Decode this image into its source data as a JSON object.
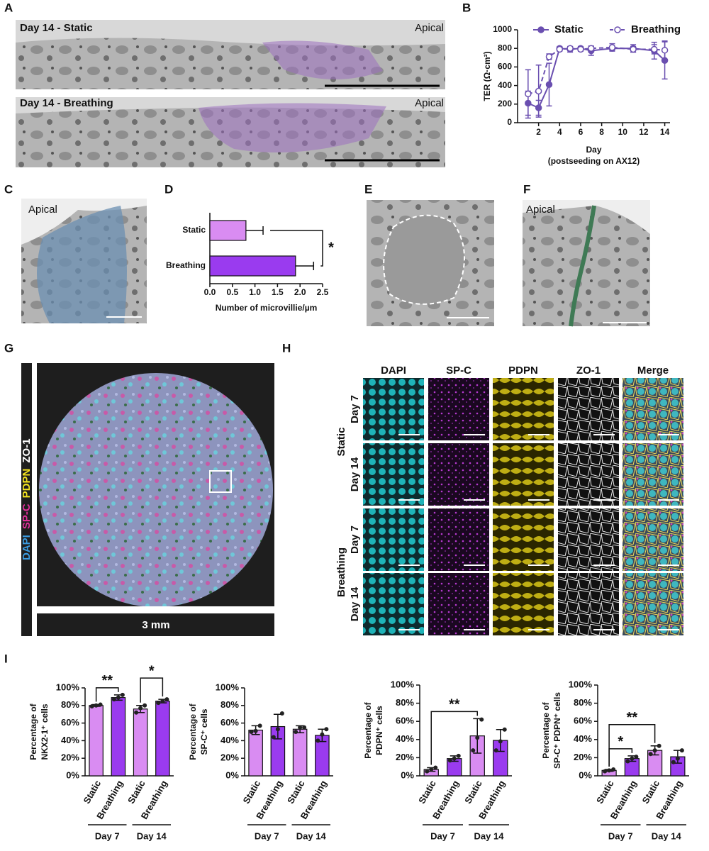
{
  "panel_labels": {
    "a": "A",
    "b": "B",
    "c": "C",
    "d": "D",
    "e": "E",
    "f": "F",
    "g": "G",
    "h": "H",
    "i": "I"
  },
  "panel_a": {
    "titles": [
      "Day 14 - Static",
      "Day 14 - Breathing"
    ],
    "side_labels": [
      "Apical",
      "Apical"
    ]
  },
  "panel_c": {
    "label": "Apical"
  },
  "panel_f": {
    "label": "Apical"
  },
  "panel_g": {
    "channels": [
      {
        "name": "DAPI",
        "color": "#3b9be0"
      },
      {
        "name": "SP-C",
        "color": "#e0309a"
      },
      {
        "name": "PDPN",
        "color": "#f2e21e"
      },
      {
        "name": "ZO-1",
        "color": "#ffffff"
      }
    ],
    "scale_label": "3 mm"
  },
  "panel_h": {
    "columns": [
      "DAPI",
      "SP-C",
      "PDPN",
      "ZO-1",
      "Merge"
    ],
    "groups": [
      "Static",
      "Breathing"
    ],
    "rows": [
      "Day 7",
      "Day 14",
      "Day 7",
      "Day 14"
    ]
  },
  "chart_data": [
    {
      "type": "line",
      "ylabel": "TER (Ω·cm²)",
      "xlabel": "Day",
      "xlabel2": "(postseeding on AX12)",
      "x": [
        1,
        2,
        3,
        4,
        5,
        6,
        7,
        9,
        11,
        13,
        14
      ],
      "series": [
        {
          "name": "Static",
          "color": "#6a4fb0",
          "dashed": false,
          "marker": "filled",
          "values": [
            210,
            160,
            410,
            800,
            790,
            800,
            775,
            800,
            800,
            775,
            670
          ],
          "errors": [
            130,
            80,
            230,
            20,
            30,
            20,
            50,
            20,
            40,
            90,
            200
          ]
        },
        {
          "name": "Breathing",
          "color": "#6a4fb0",
          "dashed": true,
          "marker": "open",
          "values": [
            310,
            340,
            710,
            790,
            800,
            790,
            800,
            810,
            790,
            790,
            780
          ],
          "errors": [
            260,
            280,
            30,
            20,
            20,
            20,
            20,
            40,
            30,
            50,
            100
          ]
        }
      ],
      "xlim": [
        0,
        14.5
      ],
      "xticks": [
        2,
        4,
        6,
        8,
        10,
        12,
        14
      ],
      "ylim": [
        0,
        1000
      ],
      "yticks": [
        0,
        200,
        400,
        600,
        800,
        1000
      ]
    },
    {
      "type": "hbar",
      "xlabel": "Number of microvillie/µm",
      "categories": [
        "Static",
        "Breathing"
      ],
      "values": [
        0.8,
        1.9
      ],
      "errors": [
        0.38,
        0.4
      ],
      "colors": [
        "#d98cf2",
        "#9a3bef"
      ],
      "xlim": [
        0,
        2.5
      ],
      "xticks": [
        {
          "value": 0,
          "label": "0.0"
        },
        0.5,
        {
          "value": 1,
          "label": "1.0"
        },
        1.5,
        {
          "value": 2,
          "label": "2.0"
        },
        2.5
      ],
      "significance": [
        {
          "pair": [
            0,
            1
          ],
          "label": "*"
        }
      ]
    },
    {
      "type": "bar",
      "ylabel": [
        "Percentage of",
        "NKX2-1⁺ cells"
      ],
      "categories": [
        "Static",
        "Breathing",
        "Static",
        "Breathing"
      ],
      "groups": [
        "Day 7",
        "Day 14"
      ],
      "values": [
        80,
        89,
        76,
        85
      ],
      "errors": [
        1,
        3,
        4,
        2
      ],
      "points": [
        [
          79,
          80,
          81
        ],
        [
          87,
          89,
          92
        ],
        [
          72,
          77,
          80
        ],
        [
          83,
          85,
          87
        ]
      ],
      "colors": [
        "#d98cf2",
        "#9a3bef",
        "#d98cf2",
        "#9a3bef"
      ],
      "ylim": [
        0,
        100
      ],
      "yticks": [
        {
          "value": 0,
          "label": "0%"
        },
        {
          "value": 20,
          "label": "20%"
        },
        {
          "value": 40,
          "label": "40%"
        },
        {
          "value": 60,
          "label": "60%"
        },
        {
          "value": 80,
          "label": "80%"
        },
        {
          "value": 100,
          "label": "100%"
        }
      ],
      "significance": [
        {
          "pair": [
            0,
            1
          ],
          "label": "**"
        },
        {
          "pair": [
            2,
            3
          ],
          "label": "*"
        }
      ]
    },
    {
      "type": "bar",
      "ylabel": [
        "Percentage of",
        "SP-C⁺ cells"
      ],
      "categories": [
        "Static",
        "Breathing",
        "Static",
        "Breathing"
      ],
      "groups": [
        "Day 7",
        "Day 14"
      ],
      "values": [
        52,
        56,
        53,
        46
      ],
      "errors": [
        5,
        14,
        4,
        7
      ],
      "points": [
        [
          50,
          51,
          57
        ],
        [
          44,
          53,
          71
        ],
        [
          50,
          55,
          55
        ],
        [
          40,
          47,
          53
        ]
      ],
      "colors": [
        "#d98cf2",
        "#9a3bef",
        "#d98cf2",
        "#9a3bef"
      ],
      "ylim": [
        0,
        100
      ],
      "yticks": [
        {
          "value": 0,
          "label": "0%"
        },
        {
          "value": 20,
          "label": "20%"
        },
        {
          "value": 40,
          "label": "40%"
        },
        {
          "value": 60,
          "label": "60%"
        },
        {
          "value": 80,
          "label": "80%"
        },
        {
          "value": 100,
          "label": "100%"
        }
      ],
      "significance": []
    },
    {
      "type": "bar",
      "ylabel": [
        "Percentage of",
        "PDPN⁺ cells"
      ],
      "categories": [
        "Static",
        "Breathing",
        "Static",
        "Breathing"
      ],
      "groups": [
        "Day 7",
        "Day 14"
      ],
      "values": [
        7,
        19,
        44,
        39
      ],
      "errors": [
        2,
        3,
        19,
        12
      ],
      "points": [
        [
          5,
          7,
          9
        ],
        [
          17,
          19,
          22
        ],
        [
          28,
          42,
          62
        ],
        [
          28,
          38,
          51
        ]
      ],
      "colors": [
        "#d98cf2",
        "#9a3bef",
        "#d98cf2",
        "#9a3bef"
      ],
      "ylim": [
        0,
        100
      ],
      "yticks": [
        {
          "value": 0,
          "label": "0%"
        },
        {
          "value": 20,
          "label": "20%"
        },
        {
          "value": 40,
          "label": "40%"
        },
        {
          "value": 60,
          "label": "60%"
        },
        {
          "value": 80,
          "label": "80%"
        },
        {
          "value": 100,
          "label": "100%"
        }
      ],
      "significance": [
        {
          "pair": [
            0,
            2
          ],
          "label": "**"
        }
      ]
    },
    {
      "type": "bar",
      "ylabel": [
        "Percentage of",
        "SP-C⁺ PDPN⁺ cells"
      ],
      "categories": [
        "Static",
        "Breathing",
        "Static",
        "Breathing"
      ],
      "groups": [
        "Day 7",
        "Day 14"
      ],
      "values": [
        6,
        19,
        28,
        21
      ],
      "errors": [
        1,
        3,
        5,
        7
      ],
      "points": [
        [
          5,
          6,
          7
        ],
        [
          16,
          19,
          21
        ],
        [
          24,
          28,
          33
        ],
        [
          15,
          19,
          28
        ]
      ],
      "colors": [
        "#d98cf2",
        "#9a3bef",
        "#d98cf2",
        "#9a3bef"
      ],
      "ylim": [
        0,
        100
      ],
      "yticks": [
        {
          "value": 0,
          "label": "0%"
        },
        {
          "value": 20,
          "label": "20%"
        },
        {
          "value": 40,
          "label": "40%"
        },
        {
          "value": 60,
          "label": "60%"
        },
        {
          "value": 80,
          "label": "80%"
        },
        {
          "value": 100,
          "label": "100%"
        }
      ],
      "significance": [
        {
          "pair": [
            0,
            1
          ],
          "label": "*"
        },
        {
          "pair": [
            0,
            2
          ],
          "label": "**"
        }
      ]
    }
  ]
}
